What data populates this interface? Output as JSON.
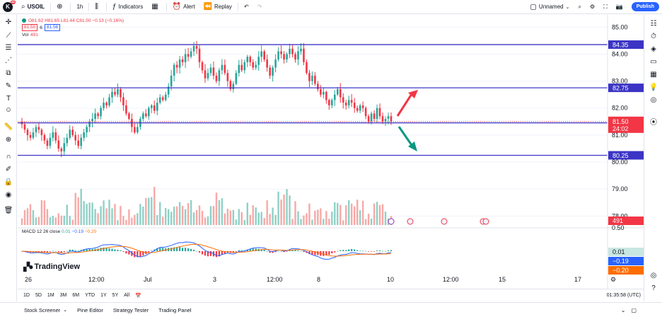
{
  "header": {
    "logo_letter": "K",
    "logo_badge": "11",
    "symbol": "USOIL",
    "interval": "1h",
    "indicators_label": "Indicators",
    "alert_label": "Alert",
    "replay_label": "Replay",
    "layout_name": "Unnamed",
    "publish_label": "Publish"
  },
  "legend": {
    "ohlc": "O81.62  H81.65  L81.44  C81.50  −0.13 (−0.16%)",
    "bid": "81.50",
    "spread": "6",
    "ask": "81.56",
    "vol_label": "Vol",
    "vol_value": "491"
  },
  "macd_legend": {
    "name": "MACD 12 26 close",
    "v0": "0.01",
    "v1": "−0.19",
    "v2": "−0.20"
  },
  "brand": "TradingView",
  "range_buttons": [
    "1D",
    "5D",
    "1M",
    "3M",
    "6M",
    "YTD",
    "1Y",
    "5Y",
    "All"
  ],
  "clock": "01:35:58 (UTC)",
  "footer_tabs": [
    "Stock Screener",
    "Pine Editor",
    "Strategy Tester",
    "Trading Panel"
  ],
  "colors": {
    "up": "#26a69a",
    "down": "#f23645",
    "level_line": "#3f36c8",
    "level_label": "#3b34c5",
    "macd_line": "#2962ff",
    "signal_line": "#ff6d00",
    "arrow_up": "#f23645",
    "arrow_down": "#089981"
  },
  "chart_data": {
    "type": "candlestick",
    "price_axis": [
      "85.00",
      "84.00",
      "83.00",
      "82.00",
      "81.00",
      "80.00",
      "79.00",
      "78.00"
    ],
    "price_range": [
      77.8,
      85.4
    ],
    "levels": [
      {
        "price": 84.35,
        "label": "84.35"
      },
      {
        "price": 82.75,
        "label": "82.75"
      },
      {
        "price": 81.4,
        "label": "81.40"
      },
      {
        "price": 80.25,
        "label": "80.25"
      }
    ],
    "last_price": {
      "price": 81.5,
      "label": "81.50",
      "countdown": "24:02"
    },
    "volume_label": "491",
    "macd_axis": [
      "0.50"
    ],
    "macd_labels": {
      "hist": "0.01",
      "macd": "−0.19",
      "signal": "−0.20"
    },
    "time_axis": [
      "26",
      "12:00",
      "Jul",
      "3",
      "12:00",
      "8",
      "10",
      "12:00",
      "15",
      "17"
    ],
    "closes": [
      81.4,
      81.2,
      81.0,
      80.9,
      81.1,
      81.3,
      81.2,
      81.0,
      80.8,
      80.6,
      80.9,
      81.1,
      80.8,
      80.5,
      80.4,
      80.7,
      80.9,
      81.2,
      81.0,
      80.8,
      80.6,
      80.9,
      81.1,
      81.3,
      81.5,
      81.6,
      81.8,
      81.7,
      82.0,
      82.2,
      82.1,
      82.4,
      82.6,
      82.5,
      82.7,
      82.4,
      82.1,
      81.8,
      81.6,
      81.3,
      81.1,
      81.3,
      81.6,
      81.8,
      81.7,
      82.0,
      82.1,
      81.9,
      82.2,
      82.4,
      82.3,
      82.5,
      82.8,
      83.2,
      83.6,
      83.5,
      83.8,
      83.7,
      84.0,
      83.9,
      84.1,
      84.3,
      84.2,
      83.7,
      83.4,
      83.1,
      83.3,
      83.5,
      83.2,
      83.0,
      83.4,
      83.6,
      83.3,
      83.0,
      82.7,
      82.9,
      83.3,
      83.6,
      83.4,
      83.7,
      83.9,
      83.7,
      83.5,
      83.6,
      83.9,
      84.1,
      83.8,
      83.5,
      83.2,
      83.5,
      83.8,
      84.1,
      84.0,
      83.8,
      84.0,
      84.2,
      84.0,
      83.8,
      84.1,
      84.2,
      83.7,
      83.3,
      83.0,
      83.2,
      82.9,
      82.7,
      82.5,
      82.6,
      82.3,
      82.1,
      82.3,
      82.5,
      82.7,
      82.4,
      82.2,
      82.1,
      82.3,
      82.2,
      82.0,
      81.9,
      82.1,
      82.0,
      81.7,
      81.5,
      81.8,
      81.6,
      82.0,
      81.7,
      81.5,
      81.6,
      81.7,
      81.5
    ]
  }
}
